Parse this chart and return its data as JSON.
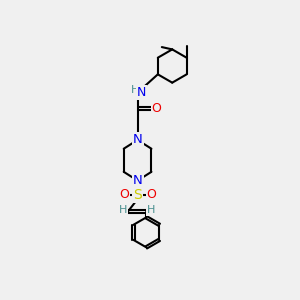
{
  "bg_color": "#f0f0f0",
  "atom_colors": {
    "C": "#000000",
    "N": "#0000ee",
    "O": "#ee0000",
    "S": "#cccc00",
    "H": "#4a9090"
  },
  "bond_color": "#000000",
  "bond_width": 1.5
}
